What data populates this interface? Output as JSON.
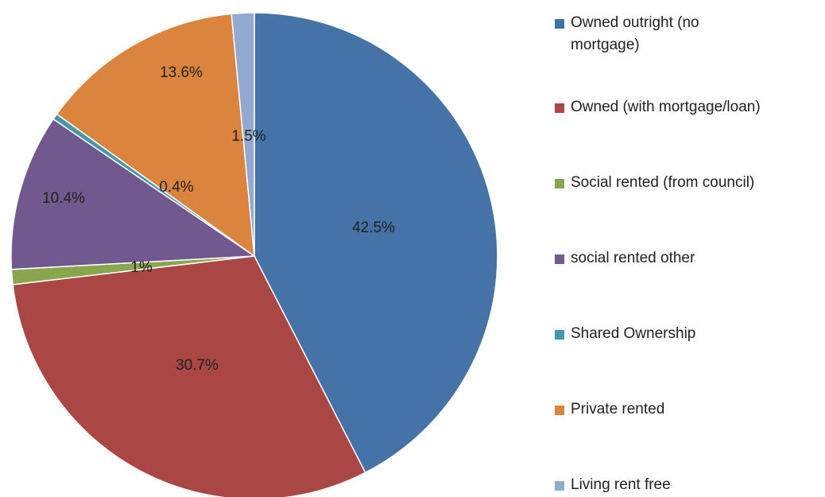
{
  "chart_data": {
    "type": "pie",
    "categories": [
      "Owned outright (no mortgage)",
      "Owned (with mortgage/loan)",
      "Social rented (from council)",
      "social rented other",
      "Shared Ownership",
      "Private rented",
      "Living rent free"
    ],
    "values": [
      42.5,
      30.7,
      1,
      10.4,
      0.4,
      13.6,
      1.5
    ],
    "value_labels": [
      "42.5%",
      "30.7%",
      "1%",
      "10.4%",
      "0.4%",
      "13.6%",
      "1.5%"
    ],
    "colors": [
      "#4572a7",
      "#aa4643",
      "#89a54e",
      "#71588f",
      "#4198af",
      "#db843d",
      "#93a9cf"
    ],
    "legend": "right"
  }
}
